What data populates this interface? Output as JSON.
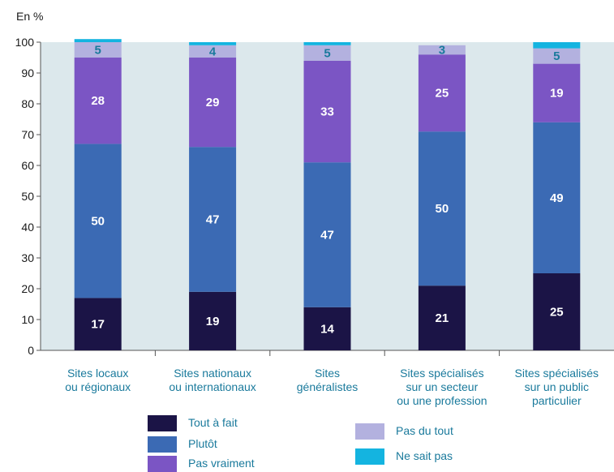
{
  "chart_data": {
    "type": "bar",
    "stacked": true,
    "unit_label": "En %",
    "ylim": [
      0,
      100
    ],
    "yticks": [
      0,
      10,
      20,
      30,
      40,
      50,
      60,
      70,
      80,
      90,
      100
    ],
    "categories": [
      [
        "Sites locaux",
        "ou régionaux"
      ],
      [
        "Sites nationaux",
        "ou internationaux"
      ],
      [
        "Sites",
        "généralistes"
      ],
      [
        "Sites spécialisés",
        "sur un secteur",
        "ou une profession"
      ],
      [
        "Sites spécialisés",
        "sur un public",
        "particulier"
      ]
    ],
    "series": [
      {
        "name": "Tout à fait",
        "color": "#1b1446",
        "label_color": "#ffffff",
        "values": [
          17,
          19,
          14,
          21,
          25
        ],
        "show_labels": [
          true,
          true,
          true,
          true,
          true
        ]
      },
      {
        "name": "Plutôt",
        "color": "#3b6ab4",
        "label_color": "#ffffff",
        "values": [
          50,
          47,
          47,
          50,
          49
        ],
        "show_labels": [
          true,
          true,
          true,
          true,
          true
        ]
      },
      {
        "name": "Pas vraiment",
        "color": "#7b55c4",
        "label_color": "#ffffff",
        "values": [
          28,
          29,
          33,
          25,
          19
        ],
        "show_labels": [
          true,
          true,
          true,
          true,
          true
        ]
      },
      {
        "name": "Pas du tout",
        "color": "#b3b1df",
        "label_color": "#1a7a9c",
        "values": [
          5,
          4,
          5,
          3,
          5
        ],
        "show_labels": [
          true,
          true,
          true,
          true,
          true
        ]
      },
      {
        "name": "Ne sait pas",
        "color": "#14b4e0",
        "label_color": "#1a7a9c",
        "values": [
          1,
          1,
          1,
          0,
          2
        ],
        "show_labels": [
          false,
          false,
          false,
          false,
          false
        ]
      }
    ],
    "plot_bg": "#dce8ec",
    "legend_placement": "bottom"
  }
}
